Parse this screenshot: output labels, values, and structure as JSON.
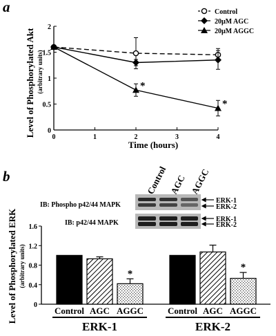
{
  "chart_data": [
    {
      "panel_letter": "a",
      "type": "line",
      "xlabel": "Time (hours)",
      "ylabel": "Level of Phosphorylated Akt",
      "ylabel_sub": "(arbitrary units)",
      "xlim": [
        0,
        4
      ],
      "ylim": [
        0,
        2
      ],
      "xticks": [
        "0",
        "1",
        "2",
        "3",
        "4"
      ],
      "yticks": [
        "0",
        "0.5",
        "1",
        "1.5",
        "2"
      ],
      "legend_position": "top-right",
      "series": [
        {
          "name": "Control",
          "marker": "open-circle",
          "style": "dashed",
          "x": [
            0,
            2,
            4
          ],
          "y": [
            1.6,
            1.48,
            1.45
          ],
          "err": [
            0,
            0.3,
            0.12
          ]
        },
        {
          "name": "20μM AGC",
          "marker": "diamond",
          "style": "solid",
          "x": [
            0,
            2,
            4
          ],
          "y": [
            1.6,
            1.3,
            1.35
          ],
          "err": [
            0,
            0.06,
            0.18
          ]
        },
        {
          "name": "20μM AGGC",
          "marker": "triangle",
          "style": "solid",
          "x": [
            0,
            2,
            4
          ],
          "y": [
            1.6,
            0.77,
            0.42
          ],
          "err": [
            0,
            0.12,
            0.15
          ]
        }
      ],
      "annotations": [
        {
          "x": 2,
          "y": 0.77,
          "text": "*"
        },
        {
          "x": 4,
          "y": 0.42,
          "text": "*"
        }
      ]
    },
    {
      "panel_letter": "b",
      "type": "bar",
      "ylabel": "Level of Phosphorylated ERK",
      "ylabel_sub": "(arbitrary units)",
      "ylim": [
        0,
        1.6
      ],
      "yticks": [
        "0",
        "0.4",
        "0.8",
        "1.2",
        "1.6"
      ],
      "groups": [
        {
          "name": "ERK-1",
          "categories": [
            "Control",
            "AGC",
            "AGGC"
          ],
          "values": [
            1.0,
            0.93,
            0.42
          ],
          "err": [
            0,
            0.04,
            0.1
          ],
          "significance": [
            "",
            "",
            "*"
          ]
        },
        {
          "name": "ERK-2",
          "categories": [
            "Control",
            "AGC",
            "AGGC"
          ],
          "values": [
            1.0,
            1.07,
            0.53
          ],
          "err": [
            0,
            0.14,
            0.12
          ],
          "significance": [
            "",
            "",
            "*"
          ]
        }
      ],
      "patterns": [
        "solid-black",
        "diagonal-hatch",
        "stipple"
      ]
    }
  ],
  "blot": {
    "lane_labels": [
      "Control",
      "AGC",
      "AGGC"
    ],
    "rows": [
      {
        "ib_label": "IB:  Phospho p42/44 MAPK",
        "bands": [
          "ERK-1",
          "ERK-2"
        ]
      },
      {
        "ib_label": "IB:  p42/44 MAPK",
        "bands": [
          "ERK-1",
          "ERK-2"
        ]
      }
    ]
  }
}
